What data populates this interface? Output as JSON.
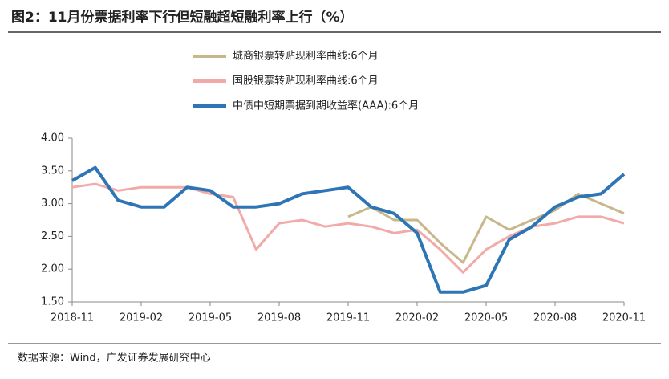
{
  "chart_data": {
    "type": "line",
    "title": "图2：11月份票据利率下行但短融超短融利率上行（%）",
    "source": "数据来源：Wind，广发证券发展研究中心",
    "x": [
      "2018-11",
      "2018-12",
      "2019-01",
      "2019-02",
      "2019-03",
      "2019-04",
      "2019-05",
      "2019-06",
      "2019-07",
      "2019-08",
      "2019-09",
      "2019-10",
      "2019-11",
      "2019-12",
      "2020-01",
      "2020-02",
      "2020-03",
      "2020-04",
      "2020-05",
      "2020-06",
      "2020-07",
      "2020-08",
      "2020-09",
      "2020-10",
      "2020-11"
    ],
    "xticks": [
      "2018-11",
      "2019-02",
      "2019-05",
      "2019-08",
      "2019-11",
      "2020-02",
      "2020-05",
      "2020-08",
      "2020-11"
    ],
    "ylim": [
      1.5,
      4.0
    ],
    "yticks": [
      {
        "value": 1.5,
        "label": "1.50"
      },
      {
        "value": 2.0,
        "label": "2.00"
      },
      {
        "value": 2.5,
        "label": "2.50"
      },
      {
        "value": 3.0,
        "label": "3.00"
      },
      {
        "value": 3.5,
        "label": "3.50"
      },
      {
        "value": 4.0,
        "label": "4.00"
      }
    ],
    "series": [
      {
        "name": "城商银票转贴现利率曲线:6个月",
        "color": "#c8b78a",
        "values": [
          null,
          null,
          null,
          null,
          null,
          null,
          null,
          null,
          null,
          null,
          null,
          null,
          2.8,
          2.95,
          2.75,
          2.75,
          2.4,
          2.1,
          2.8,
          2.6,
          2.75,
          2.9,
          3.15,
          3.0,
          2.85
        ]
      },
      {
        "name": "国股银票转贴现利率曲线:6个月",
        "color": "#f2aaa8",
        "values": [
          3.25,
          3.3,
          3.2,
          3.25,
          3.25,
          3.25,
          3.15,
          3.1,
          2.3,
          2.7,
          2.75,
          2.65,
          2.7,
          2.65,
          2.55,
          2.6,
          2.3,
          1.95,
          2.3,
          2.5,
          2.65,
          2.7,
          2.8,
          2.8,
          2.7
        ]
      },
      {
        "name": "中债中短期票据到期收益率(AAA):6个月",
        "color": "#2e75b6",
        "values": [
          3.35,
          3.55,
          3.05,
          2.95,
          2.95,
          3.25,
          3.2,
          2.95,
          2.95,
          3.0,
          3.15,
          3.2,
          3.25,
          2.95,
          2.85,
          2.55,
          1.65,
          1.65,
          1.75,
          2.45,
          2.65,
          2.95,
          3.1,
          3.15,
          3.45
        ]
      }
    ]
  }
}
